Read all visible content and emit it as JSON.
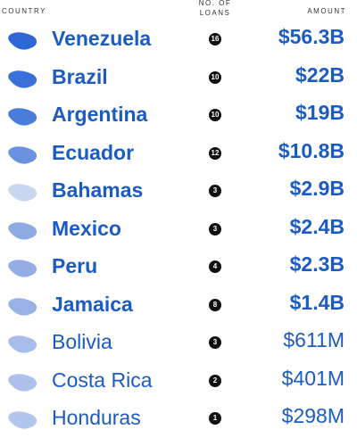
{
  "table": {
    "headers": [
      "COUNTRY",
      "NO. OF LOANS",
      "AMOUNT"
    ],
    "rows": [
      [
        "Venezuela",
        "16",
        "$56.3B"
      ],
      [
        "Brazil",
        "10",
        "$22B"
      ],
      [
        "Argentina",
        "10",
        "$19B"
      ],
      [
        "Ecuador",
        "12",
        "$10.8B"
      ],
      [
        "Bahamas",
        "3",
        "$2.9B"
      ],
      [
        "Mexico",
        "3",
        "$2.4B"
      ],
      [
        "Peru",
        "4",
        "$2.3B"
      ],
      [
        "Jamaica",
        "8",
        "$1.4B"
      ],
      [
        "Bolivia",
        "3",
        "$611M"
      ],
      [
        "Costa Rica",
        "2",
        "$401M"
      ],
      [
        "Honduras",
        "1",
        "$298M"
      ]
    ]
  }
}
